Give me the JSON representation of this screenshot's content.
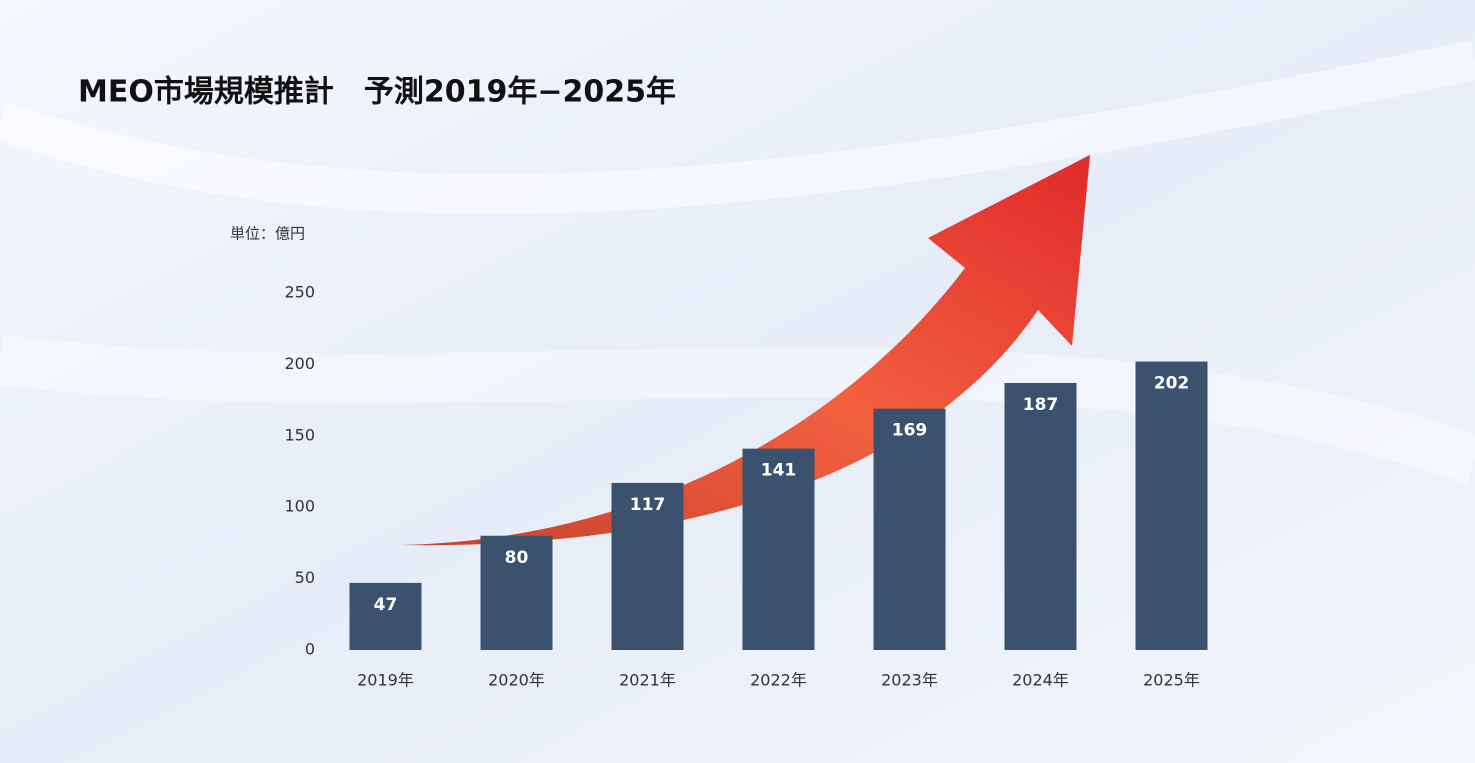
{
  "chart_data": {
    "type": "bar",
    "title": "MEO市場規模推計　予測2019年−2025年",
    "unit_label": "単位：億円",
    "categories": [
      "2019年",
      "2020年",
      "2021年",
      "2022年",
      "2023年",
      "2024年",
      "2025年"
    ],
    "values": [
      47,
      80,
      117,
      141,
      169,
      187,
      202
    ],
    "color": "#3a526e",
    "ylim": [
      0,
      250
    ],
    "yticks": [
      0,
      50,
      100,
      150,
      200,
      250
    ],
    "grid": false
  }
}
